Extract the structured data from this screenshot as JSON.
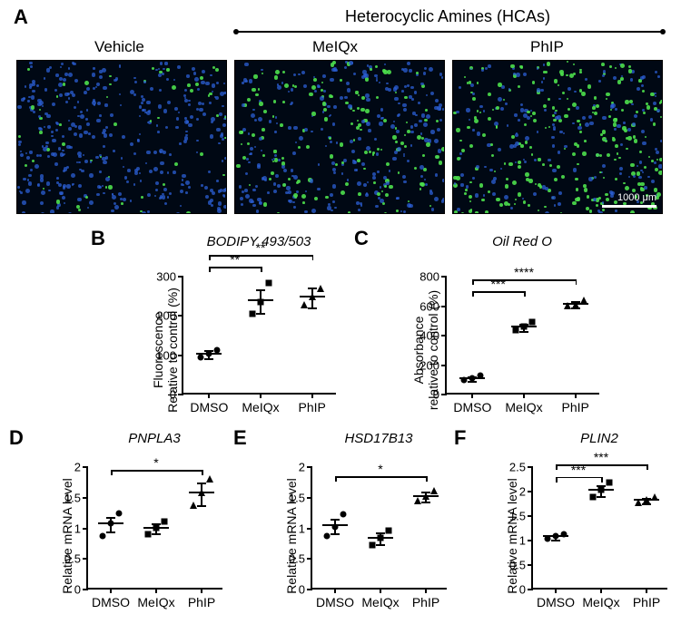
{
  "panelA": {
    "label": "A",
    "heading": "Heterocyclic Amines (HCAs)",
    "images": [
      {
        "label": "Vehicle",
        "green_density": 0.15
      },
      {
        "label": "MeIQx",
        "green_density": 0.35
      },
      {
        "label": "PhIP",
        "green_density": 0.55
      }
    ],
    "scale_text": "1000 μm",
    "cell_color": "#2b5fd4",
    "lipid_color": "#4de04d",
    "bg_color": "#000814"
  },
  "panelB": {
    "label": "B",
    "title": "BODIPY 493/503",
    "y_label": "Fluorescence\nRelative to control (%)",
    "y_ticks": [
      0,
      100,
      200,
      300
    ],
    "groups": [
      {
        "name": "DMSO",
        "mean": 100,
        "sem": 10,
        "points": [
          90,
          100,
          108
        ],
        "marker": "circle"
      },
      {
        "name": "MeIQx",
        "mean": 235,
        "sem": 30,
        "points": [
          200,
          230,
          280
        ],
        "marker": "square"
      },
      {
        "name": "PhIP",
        "mean": 245,
        "sem": 25,
        "points": [
          225,
          245,
          265
        ],
        "marker": "triangle"
      }
    ],
    "sig": [
      {
        "from": 0,
        "to": 1,
        "label": "**",
        "y": 325
      },
      {
        "from": 0,
        "to": 2,
        "label": "**",
        "y": 355
      }
    ]
  },
  "panelC": {
    "label": "C",
    "title": "Oil Red O",
    "y_label": "Absorbance\nrelative to control (%)",
    "y_ticks": [
      0,
      200,
      400,
      600,
      800
    ],
    "groups": [
      {
        "name": "DMSO",
        "mean": 100,
        "sem": 15,
        "points": [
          85,
          100,
          120
        ],
        "marker": "circle"
      },
      {
        "name": "MeIQx",
        "mean": 450,
        "sem": 25,
        "points": [
          425,
          450,
          480
        ],
        "marker": "square"
      },
      {
        "name": "PhIP",
        "mean": 605,
        "sem": 20,
        "points": [
          590,
          600,
          630
        ],
        "marker": "triangle"
      }
    ],
    "sig": [
      {
        "from": 0,
        "to": 1,
        "label": "***",
        "y": 700
      },
      {
        "from": 0,
        "to": 2,
        "label": "****",
        "y": 780
      }
    ]
  },
  "panelD": {
    "label": "D",
    "title": "PNPLA3",
    "y_label": "Relative mRNA level",
    "y_ticks": [
      0.0,
      0.5,
      1.0,
      1.5,
      2.0
    ],
    "groups": [
      {
        "name": "DMSO",
        "mean": 1.05,
        "sem": 0.12,
        "points": [
          0.85,
          1.05,
          1.22
        ],
        "marker": "circle"
      },
      {
        "name": "MeIQx",
        "mean": 0.98,
        "sem": 0.08,
        "points": [
          0.88,
          0.98,
          1.08
        ],
        "marker": "square"
      },
      {
        "name": "PhIP",
        "mean": 1.55,
        "sem": 0.18,
        "points": [
          1.35,
          1.55,
          1.78
        ],
        "marker": "triangle"
      }
    ],
    "sig": [
      {
        "from": 0,
        "to": 2,
        "label": "*",
        "y": 1.95
      }
    ]
  },
  "panelE": {
    "label": "E",
    "title": "HSD17B13",
    "y_label": "Relative mRNA level",
    "y_ticks": [
      0.0,
      0.5,
      1.0,
      1.5,
      2.0
    ],
    "groups": [
      {
        "name": "DMSO",
        "mean": 1.02,
        "sem": 0.12,
        "points": [
          0.85,
          1.0,
          1.2
        ],
        "marker": "circle"
      },
      {
        "name": "MeIQx",
        "mean": 0.82,
        "sem": 0.1,
        "points": [
          0.7,
          0.82,
          0.93
        ],
        "marker": "square"
      },
      {
        "name": "PhIP",
        "mean": 1.5,
        "sem": 0.08,
        "points": [
          1.42,
          1.5,
          1.58
        ],
        "marker": "triangle"
      }
    ],
    "sig": [
      {
        "from": 0,
        "to": 2,
        "label": "*",
        "y": 1.85
      }
    ]
  },
  "panelF": {
    "label": "F",
    "title": "PLIN2",
    "y_label": "Relative mRNA level",
    "y_ticks": [
      0.0,
      0.5,
      1.0,
      1.5,
      2.0,
      2.5
    ],
    "groups": [
      {
        "name": "DMSO",
        "mean": 1.05,
        "sem": 0.05,
        "points": [
          1.0,
          1.05,
          1.1
        ],
        "marker": "circle"
      },
      {
        "name": "MeIQx",
        "mean": 2.0,
        "sem": 0.12,
        "points": [
          1.85,
          2.0,
          2.15
        ],
        "marker": "square"
      },
      {
        "name": "PhIP",
        "mean": 1.8,
        "sem": 0.05,
        "points": [
          1.75,
          1.8,
          1.85
        ],
        "marker": "triangle"
      }
    ],
    "sig": [
      {
        "from": 0,
        "to": 1,
        "label": "***",
        "y": 2.3
      },
      {
        "from": 0,
        "to": 2,
        "label": "***",
        "y": 2.55
      }
    ]
  }
}
